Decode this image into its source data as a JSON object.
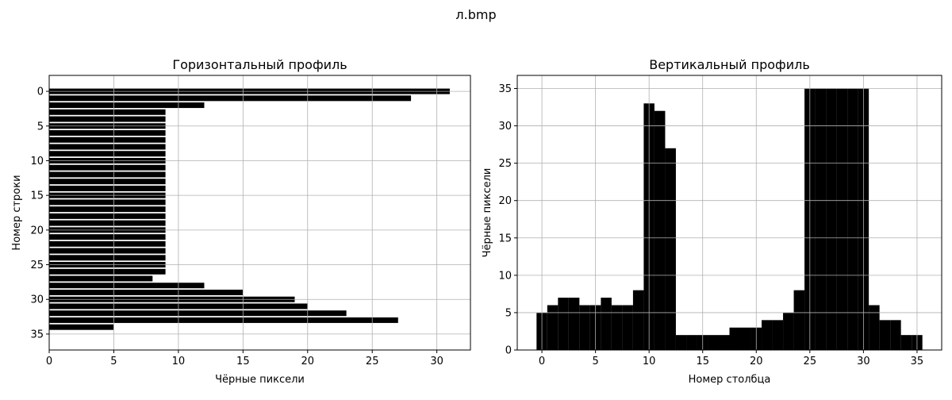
{
  "suptitle": "л.bmp",
  "chart_data": [
    {
      "type": "bar",
      "orientation": "horizontal",
      "title": "Горизонтальный профиль",
      "xlabel": "Чёрные пиксели",
      "ylabel": "Номер строки",
      "y_inverted": true,
      "xlim": [
        0,
        32.6
      ],
      "ylim": [
        37.3,
        -2.3
      ],
      "xticks": [
        0,
        5,
        10,
        15,
        20,
        25,
        30
      ],
      "yticks": [
        0,
        5,
        10,
        15,
        20,
        25,
        30,
        35
      ],
      "grid": true,
      "bar_color": "#000000",
      "rows": [
        0,
        1,
        2,
        3,
        4,
        5,
        6,
        7,
        8,
        9,
        10,
        11,
        12,
        13,
        14,
        15,
        16,
        17,
        18,
        19,
        20,
        21,
        22,
        23,
        24,
        25,
        26,
        27,
        28,
        29,
        30,
        31,
        32,
        33,
        34,
        35
      ],
      "values": [
        31,
        28,
        12,
        9,
        9,
        9,
        9,
        9,
        9,
        9,
        9,
        9,
        9,
        9,
        9,
        9,
        9,
        9,
        9,
        9,
        9,
        9,
        9,
        9,
        9,
        9,
        9,
        8,
        12,
        15,
        19,
        20,
        23,
        27,
        5,
        0
      ]
    },
    {
      "type": "bar",
      "orientation": "vertical",
      "title": "Вертикальный профиль",
      "xlabel": "Номер столбца",
      "ylabel": "Чёрные пиксели",
      "xlim": [
        -2.3,
        37.3
      ],
      "ylim": [
        0,
        36.75
      ],
      "xticks": [
        0,
        5,
        10,
        15,
        20,
        25,
        30,
        35
      ],
      "yticks": [
        0,
        5,
        10,
        15,
        20,
        25,
        30,
        35
      ],
      "grid": true,
      "bar_color": "#000000",
      "columns": [
        0,
        1,
        2,
        3,
        4,
        5,
        6,
        7,
        8,
        9,
        10,
        11,
        12,
        13,
        14,
        15,
        16,
        17,
        18,
        19,
        20,
        21,
        22,
        23,
        24,
        25,
        26,
        27,
        28,
        29,
        30,
        31,
        32,
        33,
        34,
        35
      ],
      "values": [
        5,
        6,
        7,
        7,
        6,
        6,
        7,
        6,
        6,
        8,
        33,
        32,
        27,
        2,
        2,
        2,
        2,
        2,
        3,
        3,
        3,
        4,
        4,
        5,
        8,
        35,
        35,
        35,
        35,
        35,
        35,
        6,
        4,
        4,
        2,
        2
      ]
    }
  ]
}
